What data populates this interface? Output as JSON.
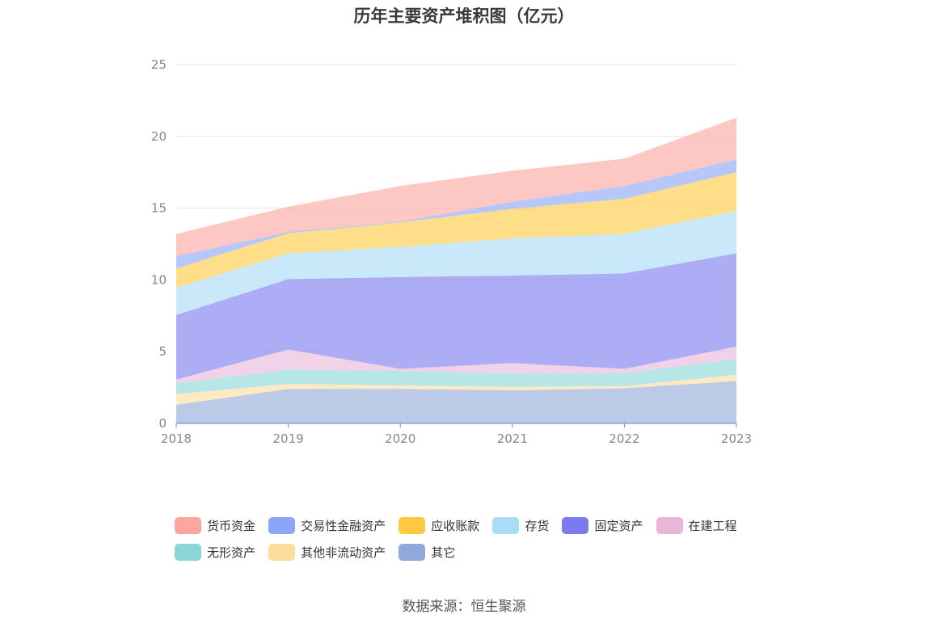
{
  "chart_data": {
    "type": "area",
    "stacked": true,
    "title": "历年主要资产堆积图（亿元）",
    "xlabel": "",
    "ylabel": "",
    "ylim": [
      0,
      25
    ],
    "yticks": [
      0,
      5,
      10,
      15,
      20,
      25
    ],
    "grid": true,
    "legend_position": "bottom",
    "categories": [
      "2018",
      "2019",
      "2020",
      "2021",
      "2022",
      "2023"
    ],
    "series": [
      {
        "name": "其它",
        "color": "#8fa9d9",
        "values": [
          1.3,
          2.4,
          2.4,
          2.3,
          2.45,
          2.95
        ]
      },
      {
        "name": "其他非流动资产",
        "color": "#fddd9c",
        "values": [
          0.75,
          0.35,
          0.25,
          0.25,
          0.15,
          0.45
        ]
      },
      {
        "name": "无形资产",
        "color": "#8ad6d6",
        "values": [
          0.75,
          1.0,
          1.0,
          0.95,
          0.9,
          1.1
        ]
      },
      {
        "name": "在建工程",
        "color": "#e9b6da",
        "values": [
          0.25,
          1.4,
          0.15,
          0.7,
          0.3,
          0.85
        ]
      },
      {
        "name": "固定资产",
        "color": "#7b7bf0",
        "values": [
          4.5,
          4.9,
          6.4,
          6.1,
          6.65,
          6.5
        ]
      },
      {
        "name": "存货",
        "color": "#a8dcf8",
        "values": [
          1.9,
          1.8,
          2.1,
          2.6,
          2.75,
          2.95
        ]
      },
      {
        "name": "应收账款",
        "color": "#fdc940",
        "values": [
          1.35,
          1.4,
          1.7,
          2.05,
          2.45,
          2.7
        ]
      },
      {
        "name": "交易性金融资产",
        "color": "#8ba5f7",
        "values": [
          0.85,
          0.1,
          0.05,
          0.5,
          0.9,
          0.9
        ]
      },
      {
        "name": "货币资金",
        "color": "#fba69e",
        "values": [
          1.55,
          1.75,
          2.5,
          2.15,
          1.9,
          2.9
        ]
      }
    ]
  },
  "legend": {
    "items": [
      {
        "label": "货币资金",
        "color": "#fba69e"
      },
      {
        "label": "交易性金融资产",
        "color": "#8ba5f7"
      },
      {
        "label": "应收账款",
        "color": "#fdc940"
      },
      {
        "label": "存货",
        "color": "#a8dcf8"
      },
      {
        "label": "固定资产",
        "color": "#7b7bf0"
      },
      {
        "label": "在建工程",
        "color": "#e9b6da"
      },
      {
        "label": "无形资产",
        "color": "#8ad6d6"
      },
      {
        "label": "其他非流动资产",
        "color": "#fddd9c"
      },
      {
        "label": "其它",
        "color": "#8fa9d9"
      }
    ]
  },
  "source": "数据来源：恒生聚源"
}
